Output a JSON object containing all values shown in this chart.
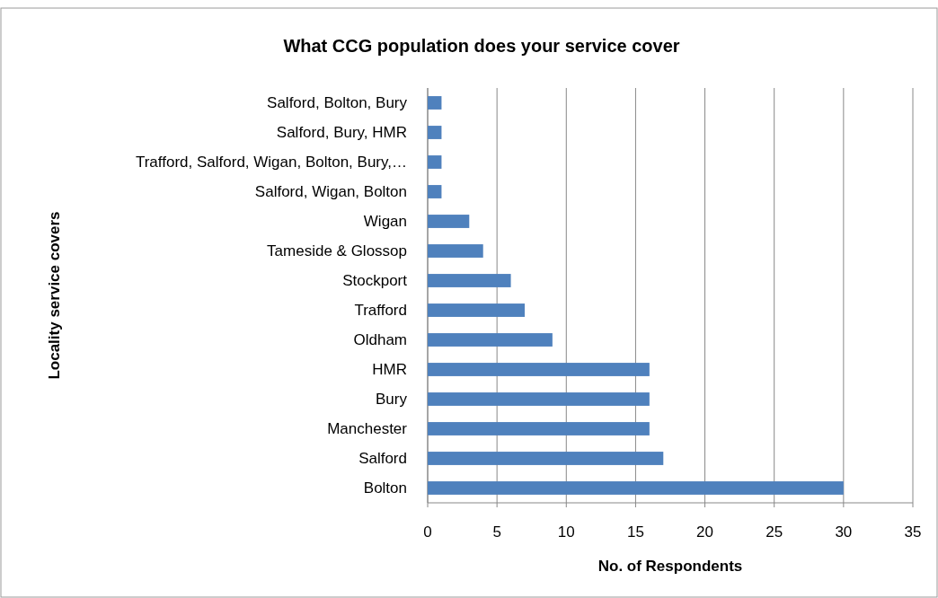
{
  "chart_data": {
    "type": "bar",
    "orientation": "horizontal",
    "title": "What CCG population does your service cover",
    "xlabel": "No. of Respondents",
    "ylabel": "Locality service covers",
    "categories": [
      "Salford, Bolton, Bury",
      "Salford, Bury, HMR",
      "Trafford, Salford, Wigan, Bolton, Bury,…",
      "Salford, Wigan, Bolton",
      "Wigan",
      "Tameside & Glossop",
      "Stockport",
      "Trafford",
      "Oldham",
      "HMR",
      "Bury",
      "Manchester",
      "Salford",
      "Bolton"
    ],
    "values": [
      1,
      1,
      1,
      1,
      3,
      4,
      6,
      7,
      9,
      16,
      16,
      16,
      17,
      30
    ],
    "color": "#4f81bd",
    "xlim": [
      0,
      35
    ],
    "xticks": [
      0,
      5,
      10,
      15,
      20,
      25,
      30,
      35
    ],
    "grid": "x"
  }
}
